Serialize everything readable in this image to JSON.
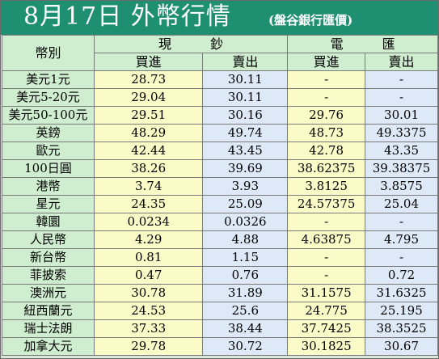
{
  "title": {
    "main": "8月17日 外幣行情",
    "sub": "(盤谷銀行匯價)"
  },
  "header": {
    "currency_col": "幣別",
    "cash": "現　　　鈔",
    "wire": "電　　　匯",
    "cash_buy": "買進",
    "cash_sell": "賣出",
    "wire_buy": "買進",
    "wire_sell": "賣出"
  },
  "rows": [
    {
      "name": "美元1元",
      "cash_buy": "28.73",
      "cash_sell": "30.11",
      "wire_buy": "-",
      "wire_sell": "-"
    },
    {
      "name": "美元5-20元",
      "cash_buy": "29.04",
      "cash_sell": "30.11",
      "wire_buy": "-",
      "wire_sell": "-"
    },
    {
      "name": "美元50-100元",
      "cash_buy": "29.51",
      "cash_sell": "30.16",
      "wire_buy": "29.76",
      "wire_sell": "30.01"
    },
    {
      "name": "英鎊",
      "cash_buy": "48.29",
      "cash_sell": "49.74",
      "wire_buy": "48.73",
      "wire_sell": "49.3375"
    },
    {
      "name": "歐元",
      "cash_buy": "42.44",
      "cash_sell": "43.45",
      "wire_buy": "42.78",
      "wire_sell": "43.35"
    },
    {
      "name": "100日圓",
      "cash_buy": "38.26",
      "cash_sell": "39.69",
      "wire_buy": "38.62375",
      "wire_sell": "39.38375"
    },
    {
      "name": "港幣",
      "cash_buy": "3.74",
      "cash_sell": "3.93",
      "wire_buy": "3.8125",
      "wire_sell": "3.8575"
    },
    {
      "name": "星元",
      "cash_buy": "24.35",
      "cash_sell": "25.09",
      "wire_buy": "24.57375",
      "wire_sell": "25.04"
    },
    {
      "name": "韓圜",
      "cash_buy": "0.0234",
      "cash_sell": "0.0326",
      "wire_buy": "-",
      "wire_sell": "-"
    },
    {
      "name": "人民幣",
      "cash_buy": "4.29",
      "cash_sell": "4.88",
      "wire_buy": "4.63875",
      "wire_sell": "4.795"
    },
    {
      "name": "新台幣",
      "cash_buy": "0.81",
      "cash_sell": "1.15",
      "wire_buy": "-",
      "wire_sell": "-"
    },
    {
      "name": "菲披索",
      "cash_buy": "0.47",
      "cash_sell": "0.76",
      "wire_buy": "-",
      "wire_sell": "0.72"
    },
    {
      "name": "澳洲元",
      "cash_buy": "30.78",
      "cash_sell": "31.89",
      "wire_buy": "31.1575",
      "wire_sell": "31.6325"
    },
    {
      "name": "紐西蘭元",
      "cash_buy": "24.53",
      "cash_sell": "25.6",
      "wire_buy": "24.775",
      "wire_sell": "25.195"
    },
    {
      "name": "瑞士法朗",
      "cash_buy": "37.33",
      "cash_sell": "38.44",
      "wire_buy": "37.7425",
      "wire_sell": "38.3525"
    },
    {
      "name": "加拿大元",
      "cash_buy": "29.78",
      "cash_sell": "30.72",
      "wire_buy": "30.1825",
      "wire_sell": "30.67"
    }
  ],
  "colors": {
    "title_bg": "#1f8f72",
    "label_bg": "#cfeecf",
    "buy_bg": "#fbfbc8",
    "sell_bg": "#dde9f6"
  }
}
